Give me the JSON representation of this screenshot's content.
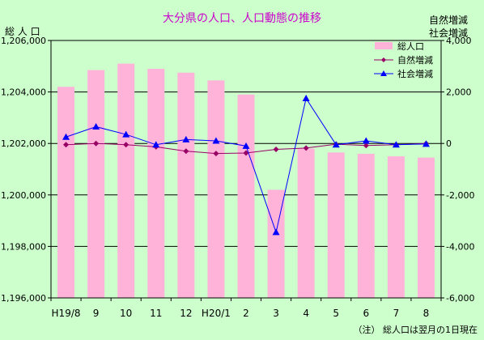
{
  "chart_data": {
    "type": "bar+line",
    "title": "大分県の人口、人口動態の推移",
    "left_axis_label": "総 人 口",
    "right_axis_label_line1": "自然増減",
    "right_axis_label_line2": "社会増減",
    "footnote": "（注） 総人口は翌月の1日現在",
    "categories": [
      "H19/8",
      "9",
      "10",
      "11",
      "12",
      "H20/1",
      "2",
      "3",
      "4",
      "5",
      "6",
      "7",
      "8"
    ],
    "left_ylim": [
      1196000,
      1206000
    ],
    "left_ticks": [
      1196000,
      1198000,
      1200000,
      1202000,
      1204000,
      1206000
    ],
    "left_tick_labels": [
      "1,196,000",
      "1,198,000",
      "1,200,000",
      "1,202,000",
      "1,204,000",
      "1,206,000"
    ],
    "right_ylim": [
      -6000,
      4000
    ],
    "right_ticks": [
      -6000,
      -4000,
      -2000,
      0,
      2000,
      4000
    ],
    "right_tick_labels": [
      "-6,000",
      "-4,000",
      "-2,000",
      "0",
      "2,000",
      "4,000"
    ],
    "legend_placement": "top-right",
    "series": [
      {
        "name": "総人口",
        "kind": "bar",
        "axis": "left",
        "color": "#ffb3d9",
        "values": [
          1204200,
          1204850,
          1205100,
          1204900,
          1204750,
          1204450,
          1203900,
          1200200,
          1201800,
          1201650,
          1201600,
          1201500,
          1201450
        ]
      },
      {
        "name": "自然増減",
        "kind": "line",
        "axis": "right",
        "color": "#990066",
        "marker": "diamond",
        "values": [
          -50,
          0,
          -50,
          -130,
          -300,
          -390,
          -370,
          -230,
          -180,
          -30,
          -80,
          -50,
          0
        ]
      },
      {
        "name": "社会増減",
        "kind": "line",
        "axis": "right",
        "color": "#0000ff",
        "marker": "triangle",
        "values": [
          250,
          650,
          350,
          -50,
          150,
          100,
          -100,
          -3450,
          1750,
          -50,
          100,
          -50,
          -20
        ]
      }
    ]
  },
  "colors": {
    "background": "#ccffcc",
    "title": "#cc00cc",
    "axis": "#000000",
    "grid": "#000000"
  }
}
